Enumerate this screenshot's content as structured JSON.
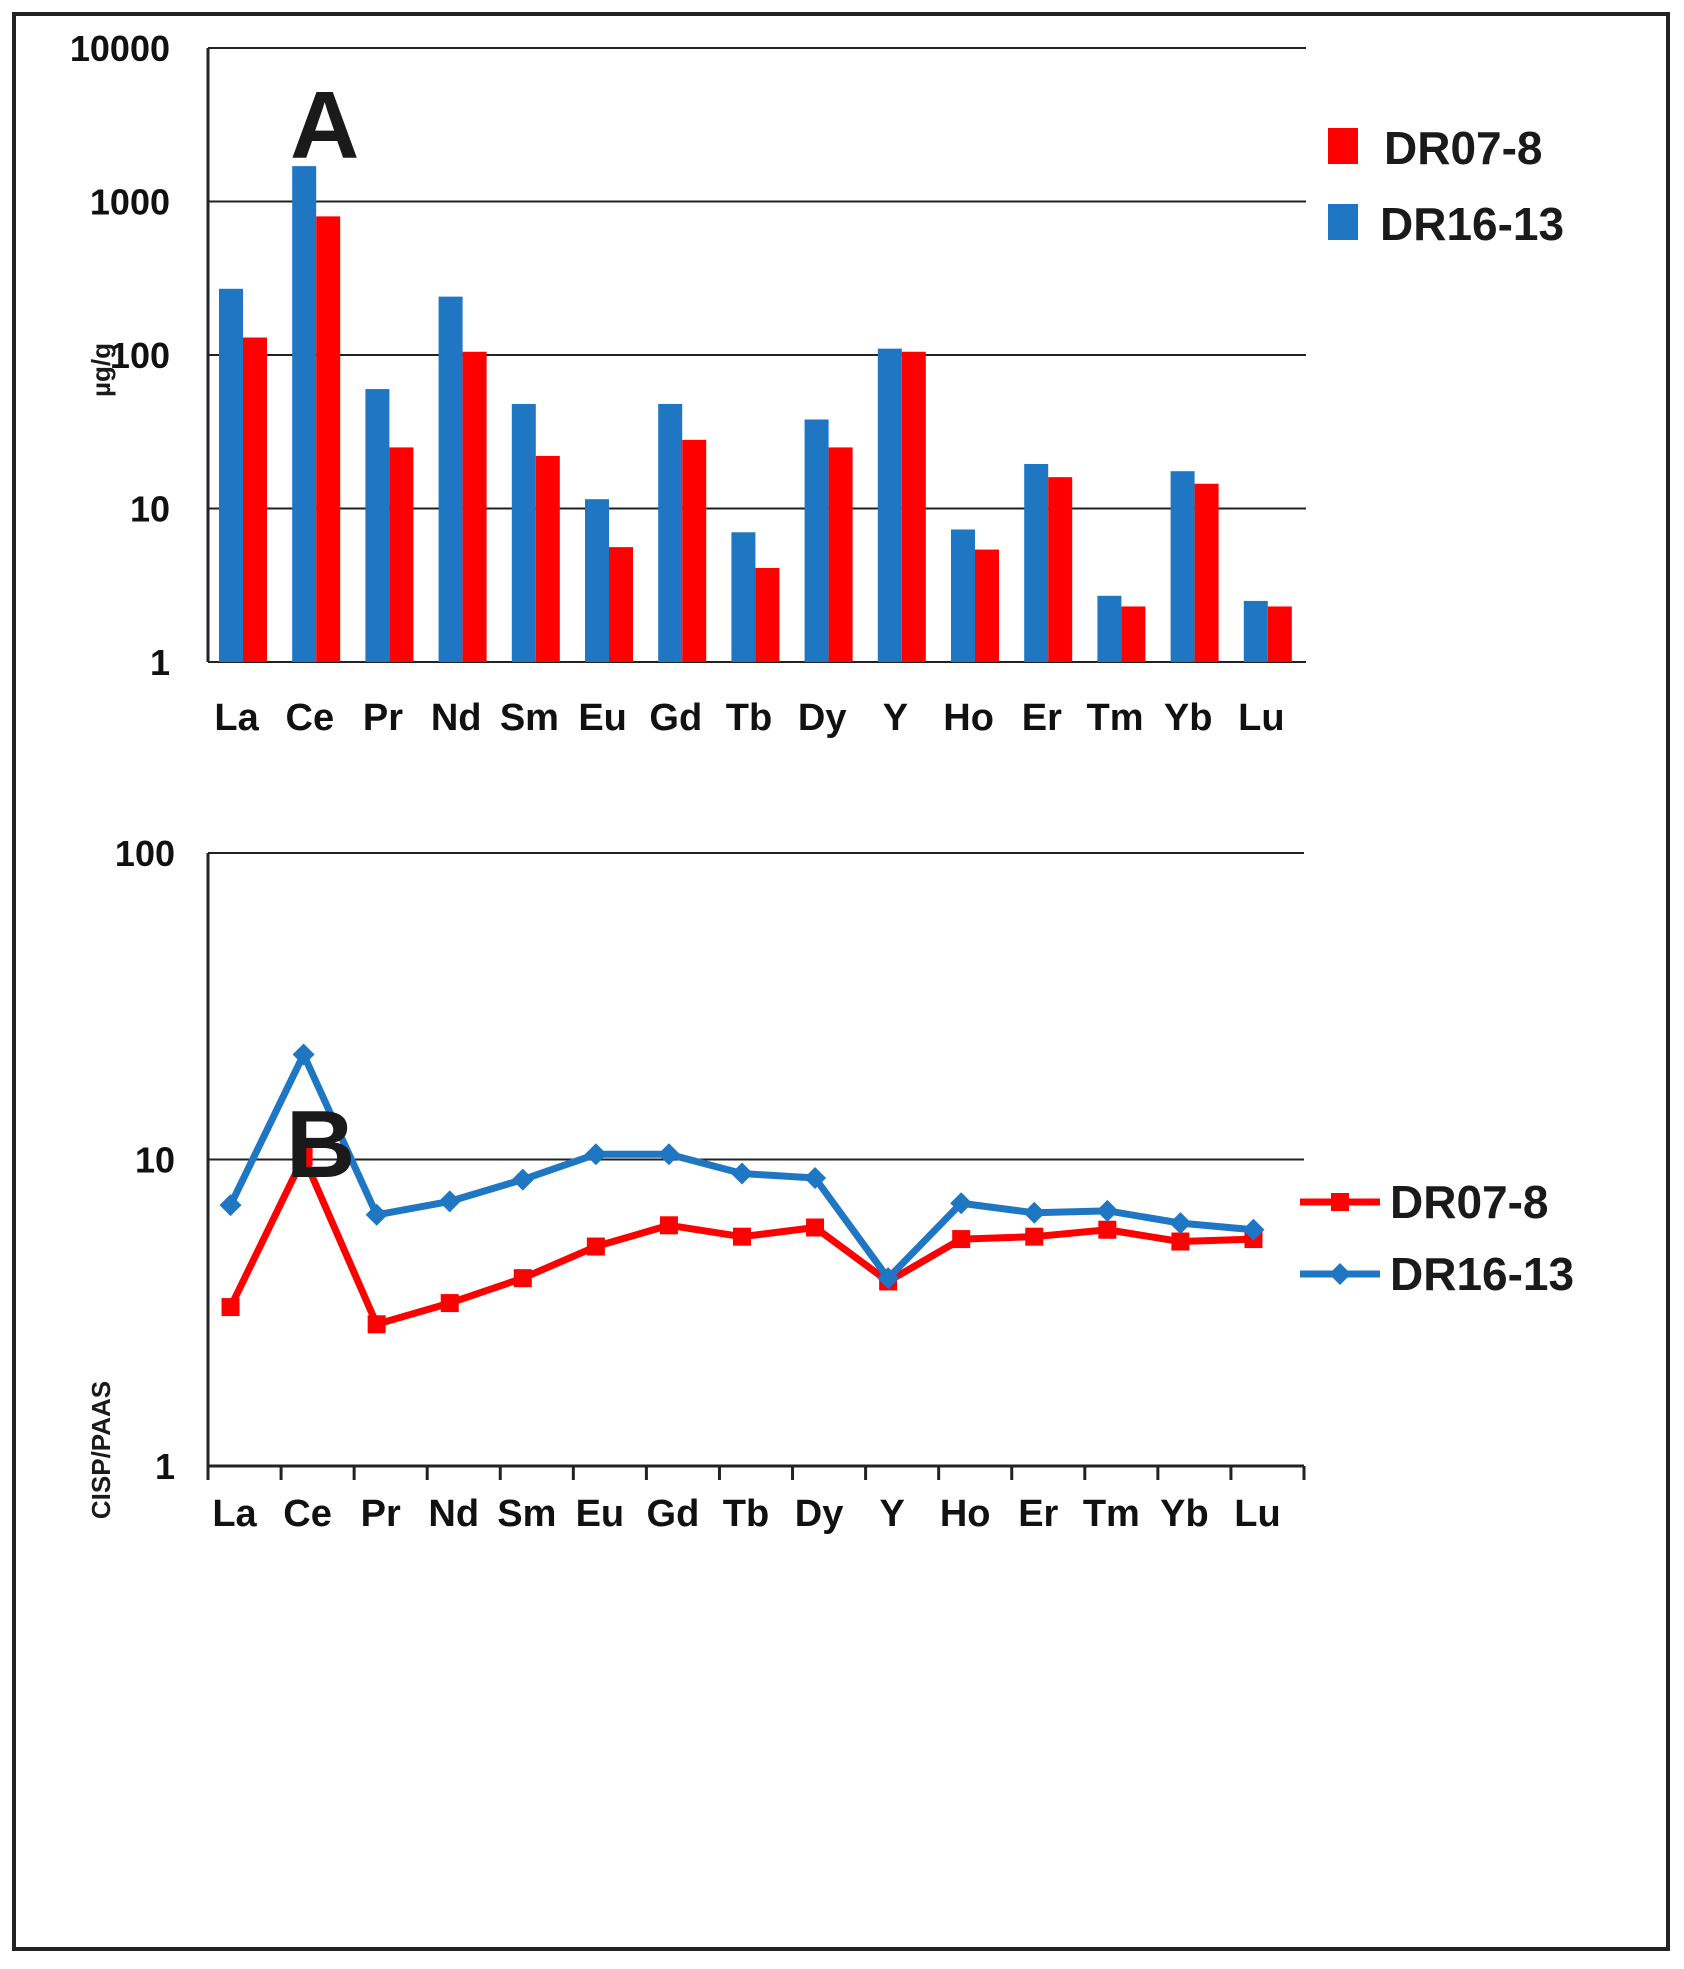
{
  "chart_data": [
    {
      "type": "bar",
      "panel_label": "A",
      "ylabel": "µg/g",
      "yscale": "log",
      "ylim": [
        1,
        10000
      ],
      "yticks": [
        "1",
        "10",
        "100",
        "1000",
        "10000"
      ],
      "categories": [
        "La",
        "Ce",
        "Pr",
        "Nd",
        "Sm",
        "Eu",
        "Gd",
        "Tb",
        "Dy",
        "Y",
        "Ho",
        "Er",
        "Tm",
        "Yb",
        "Lu"
      ],
      "series": [
        {
          "name": "DR16-13",
          "color": "#1f77c4",
          "values": [
            270,
            1700,
            60,
            240,
            48,
            11.5,
            48,
            7.0,
            38,
            110,
            7.3,
            19.5,
            2.7,
            17.5,
            2.5
          ]
        },
        {
          "name": "DR07-8",
          "color": "#ff0000",
          "values": [
            130,
            800,
            25,
            105,
            22,
            5.6,
            28,
            4.1,
            25,
            105,
            5.4,
            16,
            2.3,
            14.5,
            2.3
          ]
        }
      ],
      "legend": {
        "position": "top-right",
        "order": [
          "DR07-8",
          "DR16-13"
        ]
      },
      "grid": true
    },
    {
      "type": "line",
      "panel_label": "B",
      "ylabel": "CISP/PAAS",
      "yscale": "log",
      "ylim": [
        1,
        100
      ],
      "yticks": [
        "1",
        "10",
        "100"
      ],
      "categories": [
        "La",
        "Ce",
        "Pr",
        "Nd",
        "Sm",
        "Eu",
        "Gd",
        "Tb",
        "Dy",
        "Y",
        "Ho",
        "Er",
        "Tm",
        "Yb",
        "Lu"
      ],
      "series": [
        {
          "name": "DR07-8",
          "color": "#ff0000",
          "marker": "square",
          "values": [
            3.3,
            10.2,
            2.9,
            3.4,
            4.1,
            5.2,
            6.1,
            5.6,
            6.0,
            4.0,
            5.5,
            5.6,
            5.9,
            5.4,
            5.5
          ]
        },
        {
          "name": "DR16-13",
          "color": "#1f77c4",
          "marker": "diamond",
          "values": [
            7.1,
            22,
            6.6,
            7.3,
            8.6,
            10.4,
            10.4,
            9.0,
            8.7,
            4.1,
            7.2,
            6.7,
            6.8,
            6.2,
            5.9
          ]
        }
      ],
      "legend": {
        "position": "top-right",
        "order": [
          "DR07-8",
          "DR16-13"
        ]
      },
      "grid": true
    }
  ]
}
